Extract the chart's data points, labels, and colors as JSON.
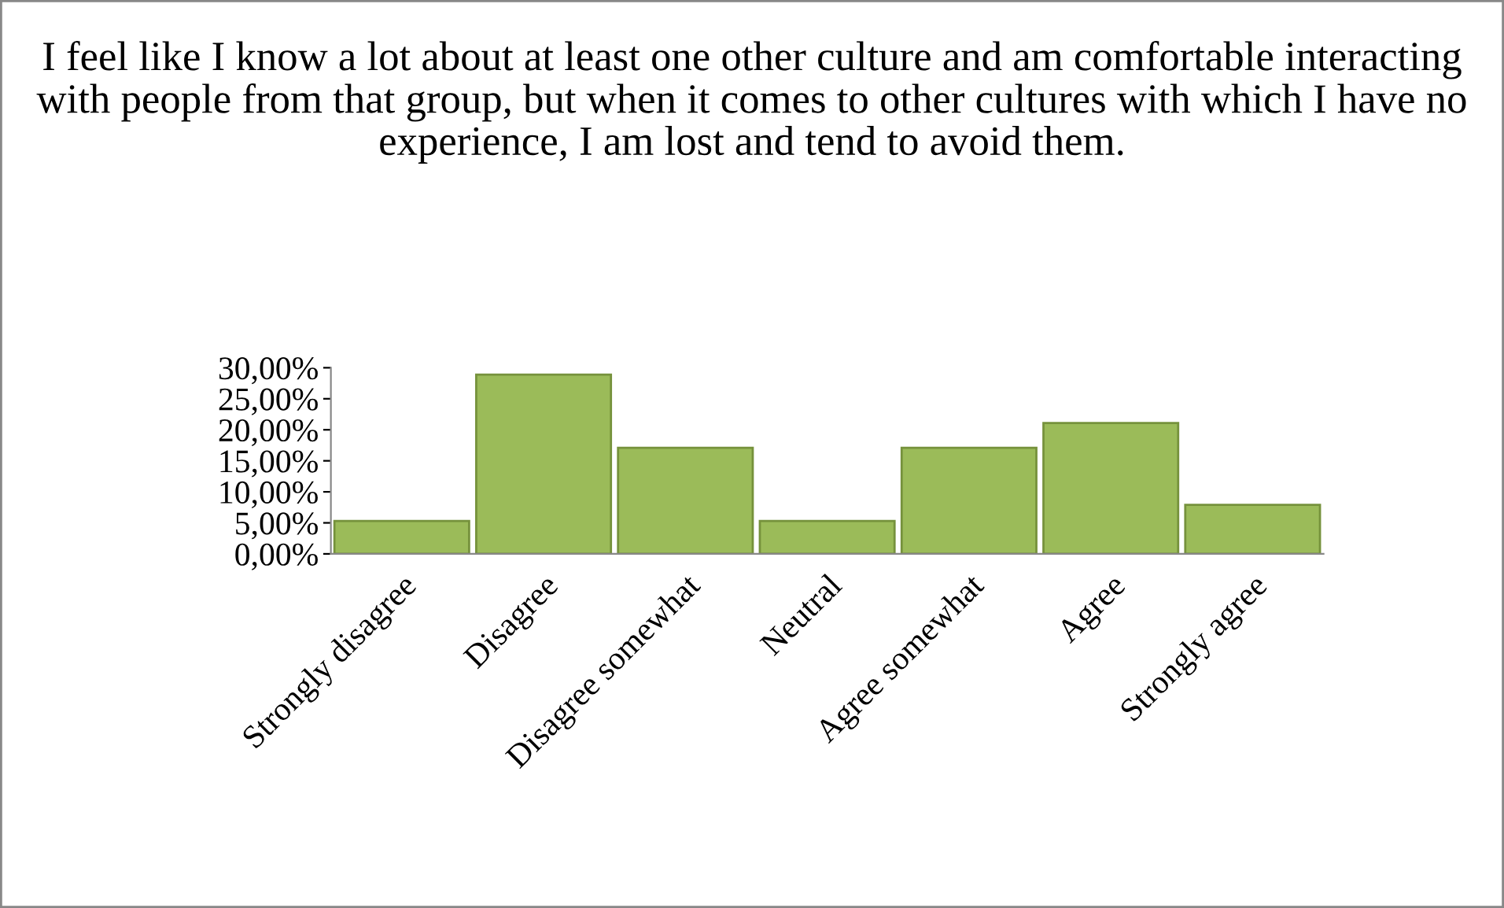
{
  "chart_data": {
    "type": "bar",
    "title": "I feel like I know a lot about at least one other culture and am comfortable interacting with people from that group, but when it comes to other cultures with which I have no experience, I am lost and tend to avoid them.",
    "categories": [
      "Strongly disagree",
      "Disagree",
      "Disagree somewhat",
      "Neutral",
      "Agree somewhat",
      "Agree",
      "Strongly agree"
    ],
    "values": [
      5.3,
      28.9,
      17.1,
      5.3,
      17.1,
      21.1,
      7.9
    ],
    "color": "#9bbb59",
    "ylim": [
      0,
      30
    ],
    "yticks": [
      {
        "value": 0,
        "label": "0,00%"
      },
      {
        "value": 5,
        "label": "5,00%"
      },
      {
        "value": 10,
        "label": "10,00%"
      },
      {
        "value": 15,
        "label": "15,00%"
      },
      {
        "value": 20,
        "label": "20,00%"
      },
      {
        "value": 25,
        "label": "25,00%"
      },
      {
        "value": 30,
        "label": "30,00%"
      }
    ],
    "grid": false
  }
}
